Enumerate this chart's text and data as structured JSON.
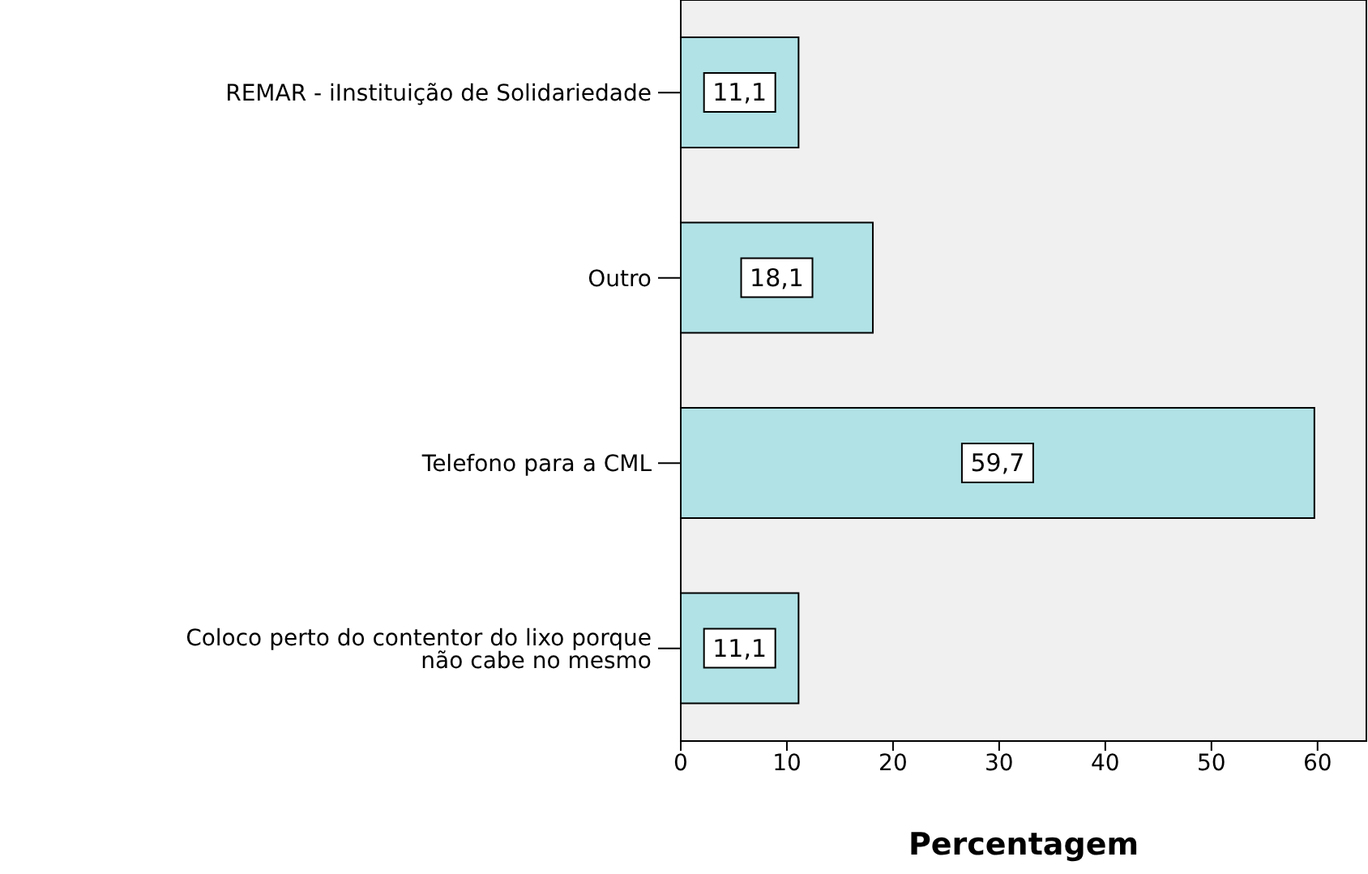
{
  "chart_data": {
    "type": "bar",
    "orientation": "horizontal",
    "xlabel": "Percentagem",
    "categories": [
      "REMAR - iInstituição de Solidariedade",
      "Outro",
      "Telefono para a CML",
      "Coloco perto do contentor do lixo porque não cabe no mesmo"
    ],
    "values": [
      11.1,
      18.1,
      59.7,
      11.1
    ],
    "value_labels": [
      "11,1",
      "18,1",
      "59,7",
      "11,1"
    ],
    "color": "#b0e2e6",
    "xlim": [
      0,
      64.6
    ],
    "xticks": [
      0,
      10,
      20,
      30,
      40,
      50,
      60
    ]
  }
}
